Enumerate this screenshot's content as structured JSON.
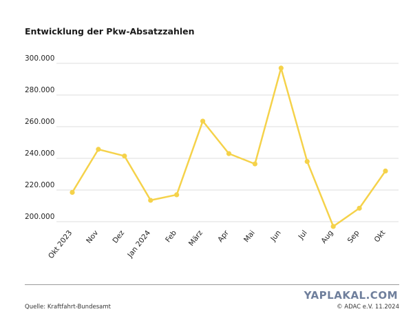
{
  "header": {
    "title": "Entwicklung der Pkw-Absatzzahlen"
  },
  "footer": {
    "source": "Quelle: Kraftfahrt-Bundesamt",
    "credit": "© ADAC e.V. 11.2024",
    "watermark": "YAPLAKAL.COM"
  },
  "chart_data": {
    "type": "line",
    "title": "Entwicklung der Pkw-Absatzzahlen",
    "xlabel": "",
    "ylabel": "",
    "categories": [
      "Okt 2023",
      "Nov",
      "Dez",
      "Jan 2024",
      "Feb",
      "März",
      "Apr",
      "Mai",
      "Jun",
      "Jul",
      "Aug",
      "Sep",
      "Okt"
    ],
    "series": [
      {
        "values": [
          218500,
          245700,
          241500,
          213500,
          217000,
          263500,
          243000,
          236500,
          297000,
          238000,
          197000,
          208500,
          232000
        ]
      }
    ],
    "yticks": [
      200000,
      220000,
      240000,
      260000,
      280000,
      300000
    ],
    "ytick_labels": [
      "200.000",
      "220.000",
      "240.000",
      "260.000",
      "280.000",
      "300.000"
    ],
    "ylim": [
      200000,
      300000
    ],
    "grid": true,
    "legend": "none",
    "line_color": "#f5d24a",
    "grid_color": "#dcdcdc"
  }
}
